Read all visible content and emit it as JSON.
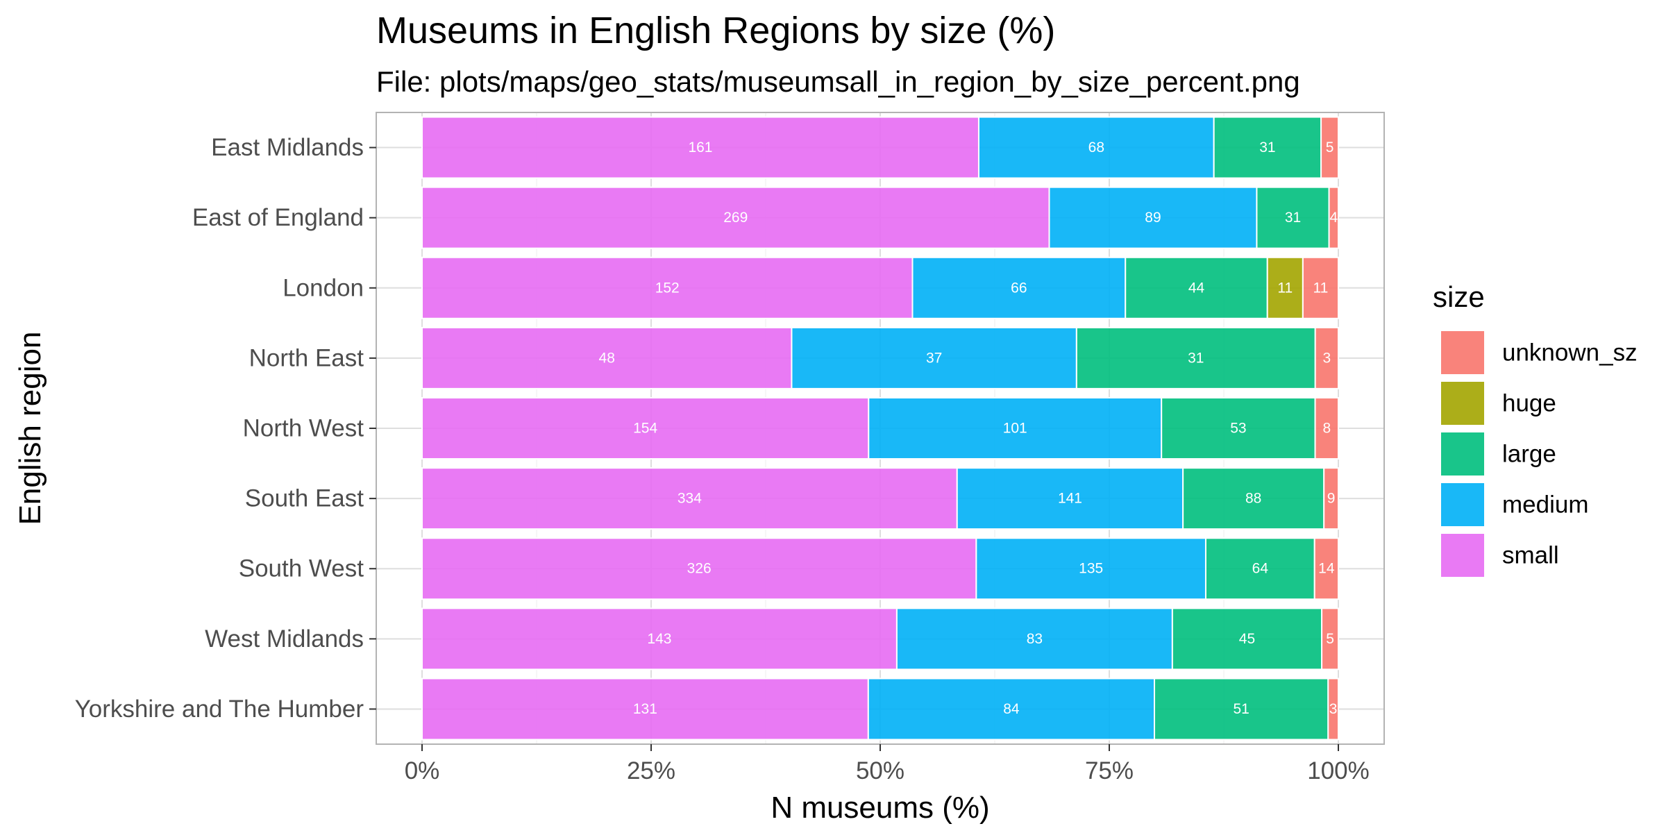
{
  "chart_data": {
    "type": "bar",
    "orientation": "horizontal",
    "stacked": "percent",
    "title": "Museums in English Regions by size (%)",
    "subtitle": "File: plots/maps/geo_stats/museumsall_in_region_by_size_percent.png",
    "xlabel": "N museums (%)",
    "ylabel": "English region",
    "xlim": [
      0,
      1
    ],
    "x_ticks": [
      0,
      0.25,
      0.5,
      0.75,
      1
    ],
    "x_tick_labels": [
      "0%",
      "25%",
      "50%",
      "75%",
      "100%"
    ],
    "grid": true,
    "legend": {
      "title": "size",
      "position": "right",
      "entries": [
        "unknown_sz",
        "huge",
        "large",
        "medium",
        "small"
      ]
    },
    "categories": [
      "East Midlands",
      "East of England",
      "London",
      "North East",
      "North West",
      "South East",
      "South West",
      "West Midlands",
      "Yorkshire and The Humber"
    ],
    "series": [
      {
        "name": "small",
        "color": "#E76BF3",
        "values": [
          161,
          269,
          152,
          48,
          154,
          334,
          326,
          143,
          131
        ]
      },
      {
        "name": "medium",
        "color": "#00B0F6",
        "values": [
          68,
          89,
          66,
          37,
          101,
          141,
          135,
          83,
          84
        ]
      },
      {
        "name": "large",
        "color": "#00BF7D",
        "values": [
          31,
          31,
          44,
          31,
          53,
          88,
          64,
          45,
          51
        ]
      },
      {
        "name": "huge",
        "color": "#A3A500",
        "values": [
          0,
          0,
          11,
          0,
          0,
          0,
          0,
          0,
          0
        ]
      },
      {
        "name": "unknown_sz",
        "color": "#F8766D",
        "values": [
          5,
          4,
          11,
          3,
          8,
          9,
          14,
          5,
          3
        ]
      }
    ]
  }
}
